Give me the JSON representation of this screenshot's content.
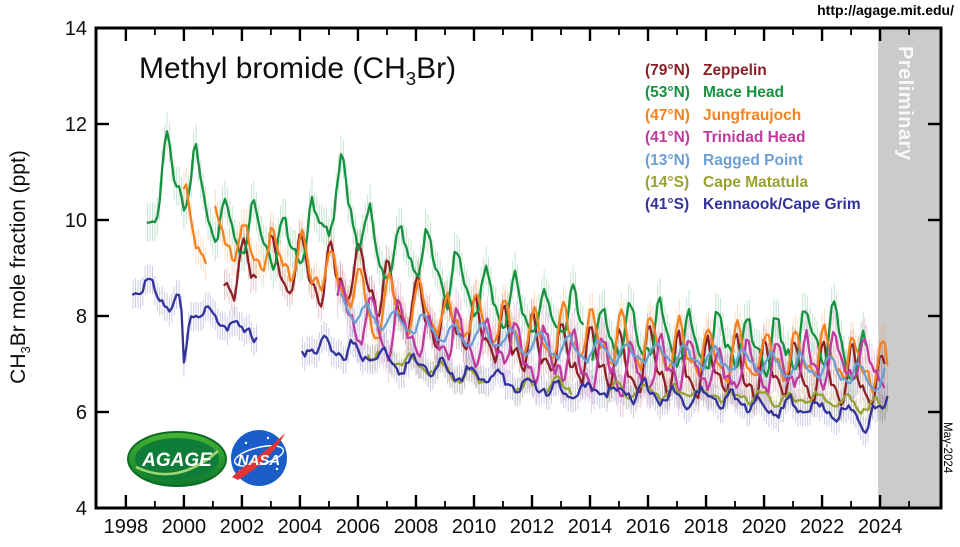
{
  "page": {
    "source_url": "http://agage.mit.edu/",
    "date_stamp": "May-2024"
  },
  "logos": {
    "agage_label": "AGAGE",
    "nasa_label": "NASA"
  },
  "chart_data": {
    "type": "line",
    "title": "Methyl bromide (CH3Br)",
    "title_parts": {
      "pre": "Methyl bromide (CH",
      "sub": "3",
      "post": "Br)"
    },
    "ylabel": "CH3Br mole fraction (ppt)",
    "ylabel_parts": {
      "pre": "CH",
      "sub": "3",
      "post": "Br mole fraction (ppt)"
    },
    "xlabel": "",
    "xlim": [
      1996.97,
      2026.1
    ],
    "ylim": [
      4,
      14
    ],
    "grid": false,
    "legend_position": "upper right",
    "x_major_ticks": [
      1998,
      2000,
      2002,
      2004,
      2006,
      2008,
      2010,
      2012,
      2014,
      2016,
      2018,
      2020,
      2022,
      2024
    ],
    "x_major_labels": [
      "1998",
      "2000",
      "2002",
      "2004",
      "2006",
      "2008",
      "2010",
      "2012",
      "2014",
      "2016",
      "2018",
      "2020",
      "2022",
      "2024"
    ],
    "x_minor_ticks": [
      1999,
      2001,
      2003,
      2005,
      2007,
      2009,
      2011,
      2013,
      2015,
      2017,
      2019,
      2021,
      2023,
      2025
    ],
    "y_major_ticks": [
      4,
      6,
      8,
      10,
      12,
      14
    ],
    "y_major_labels": [
      "4",
      "6",
      "8",
      "10",
      "12",
      "14"
    ],
    "preliminary_band": {
      "start": 2023.93,
      "color": "#cbcbcb",
      "label": "Preliminary"
    },
    "series": [
      {
        "name": "Zeppelin",
        "lat_label": "(79°N)",
        "color": "#8b2027",
        "err": 0.32,
        "noise": 0.11,
        "seasonal": {
          "amp": 0.5,
          "peak": 0.08,
          "h": 0.45
        },
        "range": [
          2001.4,
          2024.2
        ],
        "gaps": [
          [
            2002.55,
            2002.95
          ]
        ],
        "anchors": [
          [
            2001.4,
            8.75
          ],
          [
            2002,
            8.95
          ],
          [
            2003,
            9.0
          ],
          [
            2004,
            8.95
          ],
          [
            2005,
            8.8
          ],
          [
            2006,
            8.9
          ],
          [
            2007,
            8.45
          ],
          [
            2008,
            8.15
          ],
          [
            2009,
            7.9
          ],
          [
            2010,
            7.7
          ],
          [
            2011,
            7.5
          ],
          [
            2012,
            7.3
          ],
          [
            2013,
            7.25
          ],
          [
            2014,
            7.1
          ],
          [
            2015,
            7.0
          ],
          [
            2016,
            7.0
          ],
          [
            2017,
            6.95
          ],
          [
            2018,
            6.9
          ],
          [
            2019,
            6.9
          ],
          [
            2020,
            6.85
          ],
          [
            2021,
            6.8
          ],
          [
            2022,
            6.75
          ],
          [
            2023,
            6.7
          ],
          [
            2024.2,
            6.55
          ]
        ]
      },
      {
        "name": "Mace Head",
        "lat_label": "(53°N)",
        "color": "#149240",
        "err": 0.4,
        "noise": 0.14,
        "seasonal": {
          "amp": 0.5,
          "peak": 0.45,
          "h": 0.35
        },
        "range": [
          1998.75,
          2023.5
        ],
        "gaps": [
          [
            2013.78,
            2014.05
          ]
        ],
        "anchors": [
          [
            1998.75,
            10.0
          ],
          [
            1999.1,
            10.6
          ],
          [
            1999.45,
            11.3
          ],
          [
            2000,
            10.7
          ],
          [
            2000.45,
            10.9
          ],
          [
            2001,
            10.0
          ],
          [
            2002,
            9.7
          ],
          [
            2003,
            9.5
          ],
          [
            2004,
            9.5
          ],
          [
            2005,
            10.1
          ],
          [
            2005.45,
            10.7
          ],
          [
            2006,
            9.9
          ],
          [
            2007,
            9.25
          ],
          [
            2008,
            9.4
          ],
          [
            2009,
            8.75
          ],
          [
            2010,
            8.45
          ],
          [
            2011,
            8.35
          ],
          [
            2012,
            8.05
          ],
          [
            2013,
            8.0
          ],
          [
            2014,
            7.75
          ],
          [
            2015,
            7.6
          ],
          [
            2016,
            7.65
          ],
          [
            2017,
            7.5
          ],
          [
            2018,
            7.4
          ],
          [
            2019,
            7.5
          ],
          [
            2020,
            7.35
          ],
          [
            2021,
            7.45
          ],
          [
            2022,
            7.55
          ],
          [
            2022.5,
            7.8
          ],
          [
            2023,
            7.1
          ],
          [
            2023.5,
            6.9
          ]
        ]
      },
      {
        "name": "Jungfraujoch",
        "lat_label": "(47°N)",
        "color": "#f5821e",
        "err": 0.35,
        "noise": 0.13,
        "seasonal": {
          "amp": 0.42,
          "peak": 0.12,
          "h": 0.4
        },
        "range": [
          2000.0,
          2024.25
        ],
        "gaps": [
          [
            2000.78,
            2001.08
          ]
        ],
        "anchors": [
          [
            2000,
            10.1
          ],
          [
            2000.5,
            9.55
          ],
          [
            2001.2,
            9.75
          ],
          [
            2002,
            9.45
          ],
          [
            2003,
            9.3
          ],
          [
            2004,
            9.1
          ],
          [
            2005,
            8.85
          ],
          [
            2006,
            8.4
          ],
          [
            2006.6,
            7.75
          ],
          [
            2007,
            8.3
          ],
          [
            2008,
            8.2
          ],
          [
            2009,
            7.95
          ],
          [
            2010,
            7.95
          ],
          [
            2011,
            7.75
          ],
          [
            2012,
            7.65
          ],
          [
            2013,
            7.6
          ],
          [
            2014,
            7.5
          ],
          [
            2015,
            7.4
          ],
          [
            2016,
            7.35
          ],
          [
            2017,
            7.3
          ],
          [
            2018,
            7.25
          ],
          [
            2019,
            7.2
          ],
          [
            2020,
            7.15
          ],
          [
            2021,
            7.1
          ],
          [
            2022,
            7.1
          ],
          [
            2023,
            7.05
          ],
          [
            2024.25,
            6.9
          ]
        ]
      },
      {
        "name": "Trinidad Head",
        "lat_label": "(41°N)",
        "color": "#c0399f",
        "err": 0.45,
        "noise": 0.16,
        "seasonal": {
          "amp": 0.45,
          "peak": 0.48,
          "h": 0.4
        },
        "range": [
          2005.3,
          2024.2
        ],
        "gaps": [],
        "anchors": [
          [
            2005.3,
            8.3
          ],
          [
            2006,
            7.9
          ],
          [
            2007,
            7.75
          ],
          [
            2008,
            7.7
          ],
          [
            2009,
            7.55
          ],
          [
            2010,
            7.45
          ],
          [
            2011,
            7.4
          ],
          [
            2012,
            7.15
          ],
          [
            2013,
            7.1
          ],
          [
            2014,
            7.0
          ],
          [
            2015,
            6.95
          ],
          [
            2016,
            6.9
          ],
          [
            2017,
            6.9
          ],
          [
            2018,
            6.85
          ],
          [
            2019,
            6.8
          ],
          [
            2020,
            6.9
          ],
          [
            2021,
            6.95
          ],
          [
            2022,
            7.1
          ],
          [
            2023,
            7.15
          ],
          [
            2024.2,
            7.0
          ]
        ]
      },
      {
        "name": "Ragged Point",
        "lat_label": "(13°N)",
        "color": "#6b9fd4",
        "err": 0.3,
        "noise": 0.07,
        "seasonal": {
          "amp": 0.22,
          "peak": 0.3,
          "h": 0.2
        },
        "range": [
          2005.4,
          2024.2
        ],
        "gaps": [],
        "anchors": [
          [
            2005.4,
            8.35
          ],
          [
            2006,
            8.1
          ],
          [
            2007,
            7.9
          ],
          [
            2008,
            7.8
          ],
          [
            2009,
            7.65
          ],
          [
            2010,
            7.55
          ],
          [
            2011,
            7.5
          ],
          [
            2012,
            7.4
          ],
          [
            2013,
            7.35
          ],
          [
            2014,
            7.3
          ],
          [
            2015,
            7.25
          ],
          [
            2016,
            7.2
          ],
          [
            2017,
            7.15
          ],
          [
            2018,
            7.1
          ],
          [
            2019,
            7.05
          ],
          [
            2020,
            7.0
          ],
          [
            2021,
            6.95
          ],
          [
            2022,
            6.9
          ],
          [
            2023,
            6.8
          ],
          [
            2024.2,
            6.7
          ]
        ]
      },
      {
        "name": "Cape Matatula",
        "lat_label": "(14°S)",
        "color": "#98a233",
        "err": 0.25,
        "noise": 0.07,
        "seasonal": {
          "amp": 0.12,
          "peak": 0.9,
          "h": 0.2
        },
        "range": [
          2006.35,
          2024.2
        ],
        "gaps": [
          [
            2006.7,
            2007.05
          ],
          [
            2010.4,
            2011.3
          ],
          [
            2012.05,
            2012.45
          ],
          [
            2013.35,
            2014.55
          ]
        ],
        "anchors": [
          [
            2006.35,
            7.3
          ],
          [
            2007,
            7.1
          ],
          [
            2008,
            7.0
          ],
          [
            2009,
            6.85
          ],
          [
            2010,
            6.7
          ],
          [
            2011,
            6.6
          ],
          [
            2012,
            6.55
          ],
          [
            2013,
            6.5
          ],
          [
            2014,
            6.45
          ],
          [
            2015,
            6.45
          ],
          [
            2016,
            6.4
          ],
          [
            2017,
            6.35
          ],
          [
            2018,
            6.35
          ],
          [
            2019,
            6.3
          ],
          [
            2020,
            6.3
          ],
          [
            2021,
            6.25
          ],
          [
            2022,
            6.25
          ],
          [
            2023,
            6.2
          ],
          [
            2024.2,
            6.1
          ]
        ]
      },
      {
        "name": "Kennaook/Cape Grim",
        "lat_label": "(41°S)",
        "color": "#32329c",
        "err": 0.3,
        "noise": 0.1,
        "seasonal": {
          "amp": 0.16,
          "peak": 0.88,
          "h": 0.25
        },
        "range": [
          1998.25,
          2024.3
        ],
        "gaps": [
          [
            2002.55,
            2004.05
          ]
        ],
        "anchors": [
          [
            1998.25,
            8.5
          ],
          [
            1998.7,
            8.8
          ],
          [
            1999,
            8.4
          ],
          [
            1999.5,
            8.3
          ],
          [
            1999.9,
            8.1
          ],
          [
            2000.0,
            6.95
          ],
          [
            2000.2,
            8.0
          ],
          [
            2001,
            8.1
          ],
          [
            2001.5,
            7.9
          ],
          [
            2002,
            7.75
          ],
          [
            2002.5,
            7.65
          ],
          [
            2004.05,
            7.35
          ],
          [
            2005,
            7.3
          ],
          [
            2006,
            7.25
          ],
          [
            2007,
            7.1
          ],
          [
            2008,
            6.95
          ],
          [
            2009,
            6.85
          ],
          [
            2010,
            6.75
          ],
          [
            2011,
            6.6
          ],
          [
            2012,
            6.55
          ],
          [
            2013,
            6.45
          ],
          [
            2014,
            6.4
          ],
          [
            2015,
            6.4
          ],
          [
            2016,
            6.35
          ],
          [
            2017,
            6.3
          ],
          [
            2018,
            6.25
          ],
          [
            2019,
            6.2
          ],
          [
            2020,
            6.15
          ],
          [
            2021,
            6.1
          ],
          [
            2022,
            6.05
          ],
          [
            2023,
            5.95
          ],
          [
            2023.4,
            5.8
          ],
          [
            2023.8,
            5.9
          ],
          [
            2024.1,
            6.0
          ],
          [
            2024.3,
            6.4
          ]
        ]
      }
    ]
  }
}
